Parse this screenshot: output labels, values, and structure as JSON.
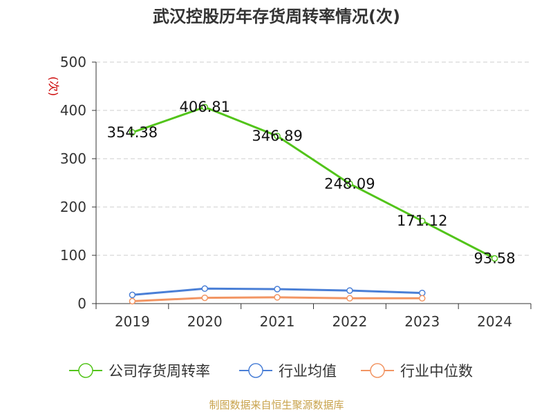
{
  "title": "武汉控股历年存货周转率情况(次)",
  "footer": "制图数据来自恒生聚源数据库",
  "colors": {
    "company": "#52c41a",
    "industry_avg": "#4a7fd6",
    "industry_median": "#f29563",
    "ylabel": "#cc0000",
    "grid": "#cccccc",
    "axis": "#333333",
    "footer": "#c8a24b"
  },
  "chart_data": {
    "type": "line",
    "title": "武汉控股历年存货周转率情况(次)",
    "xlabel": "",
    "ylabel": "(次)",
    "categories": [
      "2019",
      "2020",
      "2021",
      "2022",
      "2023",
      "2024"
    ],
    "ylim": [
      0,
      500
    ],
    "yticks": [
      0,
      100,
      200,
      300,
      400,
      500
    ],
    "grid": true,
    "legend_position": "bottom",
    "series": [
      {
        "name": "公司存货周转率",
        "color": "#52c41a",
        "values": [
          354.38,
          406.81,
          346.89,
          248.09,
          171.12,
          93.58
        ],
        "labels": [
          "354.38",
          "406.81",
          "346.89",
          "248.09",
          "171.12",
          "93.58"
        ],
        "show_labels": true
      },
      {
        "name": "行业均值",
        "color": "#4a7fd6",
        "values": [
          18,
          31,
          30,
          27,
          22,
          null
        ],
        "show_labels": false
      },
      {
        "name": "行业中位数",
        "color": "#f29563",
        "values": [
          5,
          12,
          13,
          11,
          11,
          null
        ],
        "show_labels": false
      }
    ]
  }
}
